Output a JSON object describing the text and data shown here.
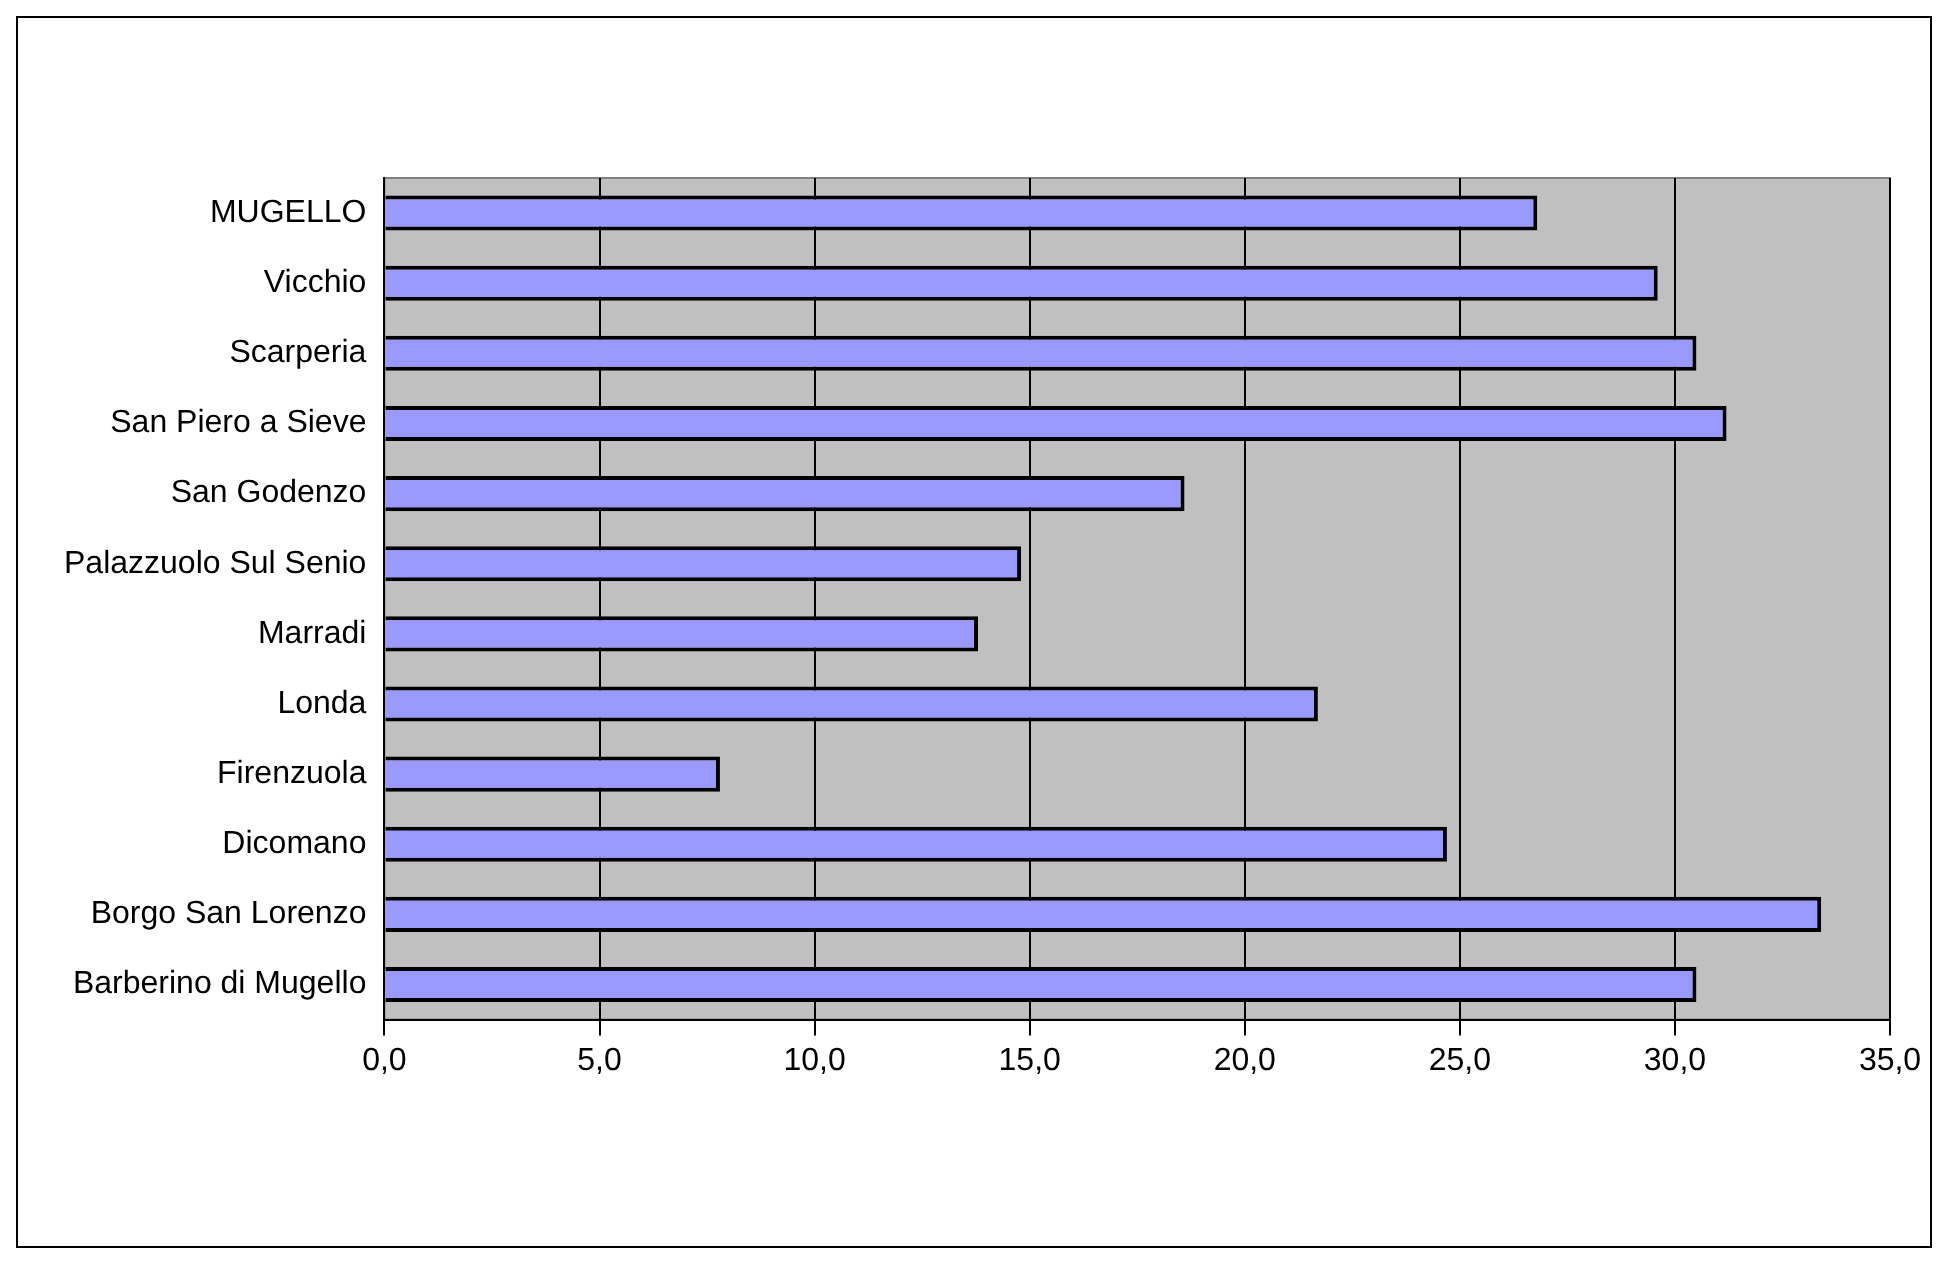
{
  "chart_data": {
    "type": "bar",
    "orientation": "horizontal",
    "categories": [
      "MUGELLO",
      "Vicchio",
      "Scarperia",
      "San Piero a Sieve",
      "San Godenzo",
      "Palazzuolo Sul Senio",
      "Marradi",
      "Londa",
      "Firenzuola",
      "Dicomano",
      "Borgo San Lorenzo",
      "Barberino di Mugello"
    ],
    "values": [
      26.8,
      29.6,
      30.5,
      31.2,
      18.6,
      14.8,
      13.8,
      21.7,
      7.8,
      24.7,
      33.4,
      30.5
    ],
    "color": "#9999ff",
    "xlim": [
      0,
      35
    ],
    "xticks": [
      {
        "value": 0,
        "label": "0,0"
      },
      {
        "value": 5,
        "label": "5,0"
      },
      {
        "value": 10,
        "label": "10,0"
      },
      {
        "value": 15,
        "label": "15,0"
      },
      {
        "value": 20,
        "label": "20,0"
      },
      {
        "value": 25,
        "label": "25,0"
      },
      {
        "value": 30,
        "label": "30,0"
      },
      {
        "value": 35,
        "label": "35,0"
      }
    ],
    "grid": "x",
    "legend": false
  }
}
